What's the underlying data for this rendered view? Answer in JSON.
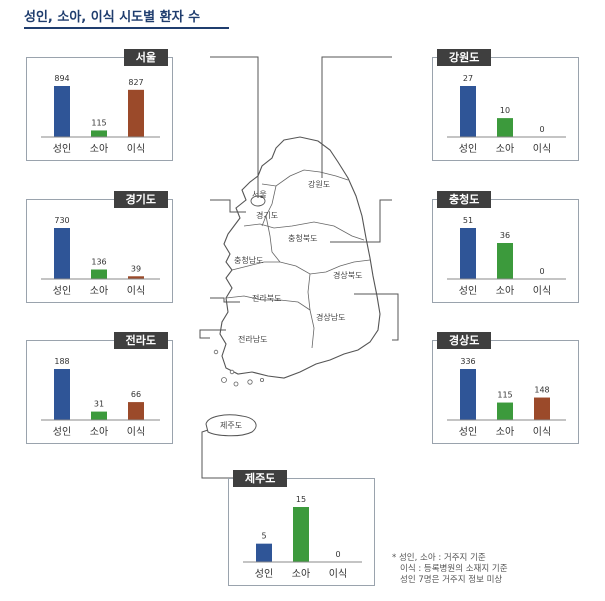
{
  "title": "성인, 소아, 이식 시도별 환자 수",
  "colors": {
    "adult": "#2f5597",
    "child": "#3c9a3c",
    "transplant": "#9b4a2a",
    "tab": "#3f3f3f"
  },
  "map_labels": {
    "seoul": "서울",
    "gyeonggi": "경기도",
    "gangwon": "강원도",
    "chungbuk": "충청북도",
    "chungnam": "충청남도",
    "gyeongbuk": "경상북도",
    "jeonbuk": "전라북도",
    "gyeongnam": "경상남도",
    "jeonnam": "전라남도",
    "jeju": "제주도"
  },
  "notes": [
    "* 성인, 소아 : 거주지 기준",
    "이식 : 등록병원의 소재지 기준",
    "성인 7명은 거주지 정보 미상"
  ],
  "chart_data": [
    {
      "type": "bar",
      "title": "서울",
      "categories": [
        "성인",
        "소아",
        "이식"
      ],
      "values": [
        894,
        115,
        827
      ]
    },
    {
      "type": "bar",
      "title": "강원도",
      "categories": [
        "성인",
        "소아",
        "이식"
      ],
      "values": [
        27,
        10,
        0
      ]
    },
    {
      "type": "bar",
      "title": "경기도",
      "categories": [
        "성인",
        "소아",
        "이식"
      ],
      "values": [
        730,
        136,
        39
      ]
    },
    {
      "type": "bar",
      "title": "충청도",
      "categories": [
        "성인",
        "소아",
        "이식"
      ],
      "values": [
        51,
        36,
        0
      ]
    },
    {
      "type": "bar",
      "title": "전라도",
      "categories": [
        "성인",
        "소아",
        "이식"
      ],
      "values": [
        188,
        31,
        66
      ]
    },
    {
      "type": "bar",
      "title": "경상도",
      "categories": [
        "성인",
        "소아",
        "이식"
      ],
      "values": [
        336,
        115,
        148
      ]
    },
    {
      "type": "bar",
      "title": "제주도",
      "categories": [
        "성인",
        "소아",
        "이식"
      ],
      "values": [
        5,
        15,
        0
      ]
    }
  ]
}
